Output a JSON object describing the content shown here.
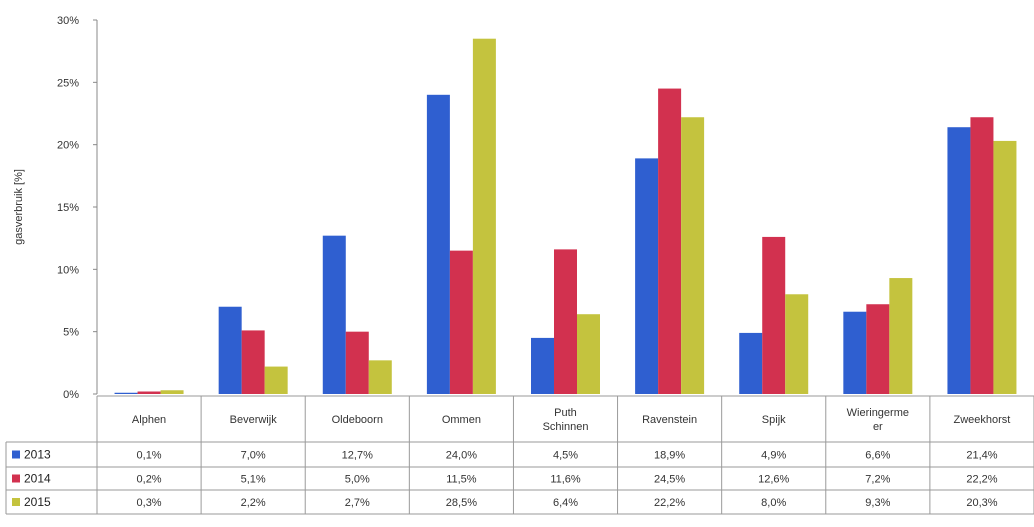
{
  "chart_data": {
    "type": "bar",
    "ylabel": "gasverbruik [%]",
    "ylim": [
      0,
      30
    ],
    "yticks": [
      "0%",
      "5%",
      "10%",
      "15%",
      "20%",
      "25%",
      "30%"
    ],
    "grid": false,
    "legend": "data-table-left",
    "categories": [
      [
        "Alphen"
      ],
      [
        "Beverwijk"
      ],
      [
        "Oldeboorn"
      ],
      [
        "Ommen"
      ],
      [
        "Puth",
        "Schinnen"
      ],
      [
        "Ravenstein"
      ],
      [
        "Spijk"
      ],
      [
        "Wieringerme",
        "er"
      ],
      [
        "Zweekhorst"
      ]
    ],
    "series": [
      {
        "name": "2013",
        "color": "#2f5fd0",
        "values": [
          0.1,
          7.0,
          12.7,
          24.0,
          4.5,
          18.9,
          4.9,
          6.6,
          21.4
        ],
        "labels": [
          "0,1%",
          "7,0%",
          "12,7%",
          "24,0%",
          "4,5%",
          "18,9%",
          "4,9%",
          "6,6%",
          "21,4%"
        ]
      },
      {
        "name": "2014",
        "color": "#d2314f",
        "values": [
          0.2,
          5.1,
          5.0,
          11.5,
          11.6,
          24.5,
          12.6,
          7.2,
          22.2
        ],
        "labels": [
          "0,2%",
          "5,1%",
          "5,0%",
          "11,5%",
          "11,6%",
          "24,5%",
          "12,6%",
          "7,2%",
          "22,2%"
        ]
      },
      {
        "name": "2015",
        "color": "#c4c33e",
        "values": [
          0.3,
          2.2,
          2.7,
          28.5,
          6.4,
          22.2,
          8.0,
          9.3,
          20.3
        ],
        "labels": [
          "0,3%",
          "2,2%",
          "2,7%",
          "28,5%",
          "6,4%",
          "22,2%",
          "8,0%",
          "9,3%",
          "20,3%"
        ]
      }
    ]
  }
}
